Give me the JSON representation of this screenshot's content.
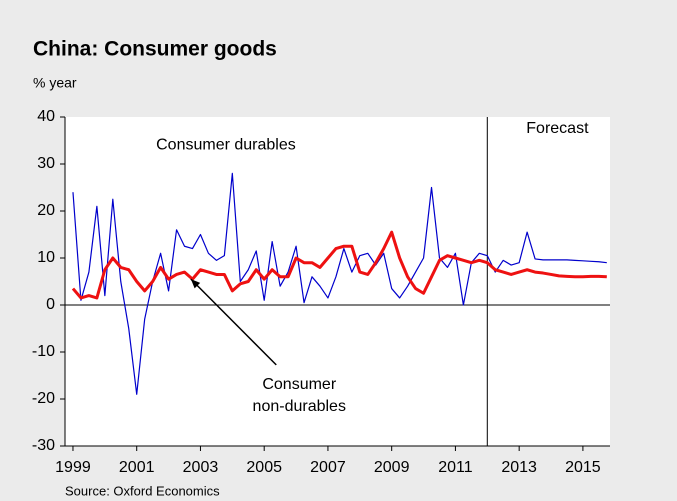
{
  "chart_data": {
    "type": "line",
    "title": "China: Consumer goods",
    "y_label": "% year",
    "source": "Source: Oxford Economics",
    "annotations": [
      {
        "text": "Consumer durables",
        "x": 2003.8,
        "y": 34
      },
      {
        "text": "Forecast",
        "x": 2014.2,
        "y": 37.5
      },
      {
        "lines": [
          "Consumer",
          "non-durables"
        ],
        "x": 2006.1,
        "y": -17,
        "arrow_to": [
          2002.7,
          5.5
        ]
      }
    ],
    "forecast_start": 2012,
    "x": [
      1999,
      1999.25,
      1999.5,
      1999.75,
      2000,
      2000.25,
      2000.5,
      2000.75,
      2001,
      2001.25,
      2001.5,
      2001.75,
      2002,
      2002.25,
      2002.5,
      2002.75,
      2003,
      2003.25,
      2003.5,
      2003.75,
      2004,
      2004.25,
      2004.5,
      2004.75,
      2005,
      2005.25,
      2005.5,
      2005.75,
      2006,
      2006.25,
      2006.5,
      2006.75,
      2007,
      2007.25,
      2007.5,
      2007.75,
      2008,
      2008.25,
      2008.5,
      2008.75,
      2009,
      2009.25,
      2009.5,
      2009.75,
      2010,
      2010.25,
      2010.5,
      2010.75,
      2011,
      2011.25,
      2011.5,
      2011.75,
      2012,
      2012.25,
      2012.5,
      2012.75,
      2013,
      2013.25,
      2013.5,
      2013.75,
      2014,
      2014.25,
      2014.5,
      2014.75,
      2015,
      2015.25,
      2015.5,
      2015.75
    ],
    "series": [
      {
        "color": "#0000cc",
        "width": 1.2,
        "values": [
          24,
          1,
          7,
          21,
          2,
          22.5,
          5,
          -5,
          -19,
          -3,
          5,
          11,
          3,
          16,
          12.5,
          12,
          15,
          11,
          9.5,
          10.5,
          28,
          5,
          7.5,
          11.5,
          1,
          13.5,
          4,
          7,
          12.5,
          0.5,
          6,
          4,
          1.5,
          6,
          12,
          7,
          10.5,
          11,
          8.5,
          11,
          3.5,
          1.5,
          4,
          7,
          10,
          25,
          10,
          8,
          11,
          0,
          9,
          11,
          10.5,
          7,
          9.5,
          8.5,
          9,
          15.5,
          9.8,
          9.6,
          9.6,
          9.6,
          9.6,
          9.5,
          9.4,
          9.3,
          9.2,
          9.0
        ]
      },
      {
        "color": "#ee1111",
        "width": 3,
        "values": [
          3.5,
          1.5,
          2,
          1.5,
          7.5,
          10,
          8,
          7.5,
          5,
          3,
          5,
          8,
          5.5,
          6.5,
          7,
          5.5,
          7.5,
          7,
          6.5,
          6.5,
          3,
          4.5,
          5,
          7.5,
          5.5,
          7.5,
          6,
          6,
          10,
          9,
          9,
          8,
          10,
          12,
          12.5,
          12.5,
          7,
          6.5,
          9,
          12,
          15.5,
          10,
          6,
          3.5,
          2.5,
          6,
          9.5,
          10.5,
          10,
          9.5,
          9,
          9.5,
          9,
          7.5,
          7,
          6.5,
          7,
          7.5,
          7,
          6.8,
          6.5,
          6.2,
          6.1,
          6,
          6,
          6.1,
          6.1,
          6
        ]
      }
    ],
    "xlim": [
      1998.75,
      2015.85
    ],
    "xticks": [
      1999,
      2001,
      2003,
      2005,
      2007,
      2009,
      2011,
      2013,
      2015
    ],
    "ylim": [
      -30,
      40
    ],
    "yticks": [
      -30,
      -20,
      -10,
      0,
      10,
      20,
      30,
      40
    ]
  }
}
